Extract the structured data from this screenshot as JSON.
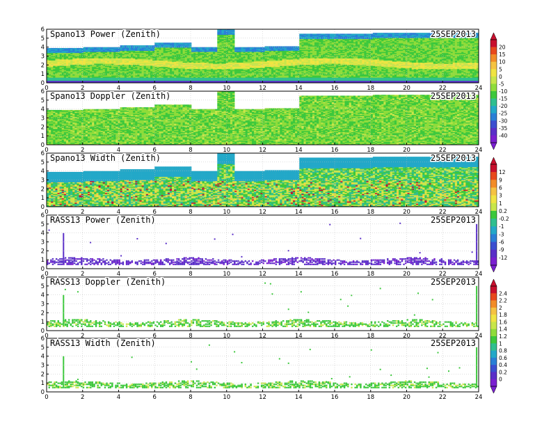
{
  "figure": {
    "date": "25SEP2013"
  },
  "chart_data": [
    {
      "type": "heatmap",
      "title": "Spano13 Power (Zenith)",
      "date": "25SEP2013",
      "x_ticks": [
        "0",
        "2",
        "4",
        "6",
        "8",
        "10",
        "12",
        "14",
        "16",
        "18",
        "20",
        "22",
        "24"
      ],
      "y_ticks": [
        "0",
        "1",
        "2",
        "3",
        "4",
        "5",
        "6"
      ],
      "xlim": [
        0,
        24
      ],
      "ylim": [
        0,
        6
      ],
      "colorbar_group": 0,
      "pattern": "profiler_power",
      "top_height_km": [
        {
          "x": 0,
          "h": 3.9
        },
        {
          "x": 2,
          "h": 4.0
        },
        {
          "x": 4,
          "h": 4.2
        },
        {
          "x": 6,
          "h": 4.5
        },
        {
          "x": 8,
          "h": 4.0
        },
        {
          "x": 9.4,
          "h": 6.0
        },
        {
          "x": 10.4,
          "h": 4.0
        },
        {
          "x": 12,
          "h": 4.1
        },
        {
          "x": 14,
          "h": 5.5
        },
        {
          "x": 18,
          "h": 5.6
        },
        {
          "x": 22,
          "h": 5.6
        },
        {
          "x": 24,
          "h": 5.6
        }
      ]
    },
    {
      "type": "heatmap",
      "title": "Spano13 Doppler (Zenith)",
      "date": "25SEP2013",
      "x_ticks": [
        "0",
        "2",
        "4",
        "6",
        "8",
        "10",
        "12",
        "14",
        "16",
        "18",
        "20",
        "22",
        "24"
      ],
      "y_ticks": [
        "0",
        "1",
        "2",
        "3",
        "4",
        "5",
        "6"
      ],
      "xlim": [
        0,
        24
      ],
      "ylim": [
        0,
        6
      ],
      "colorbar_group": 0,
      "pattern": "profiler_doppler",
      "top_height_km": [
        {
          "x": 0,
          "h": 3.9
        },
        {
          "x": 2,
          "h": 4.0
        },
        {
          "x": 4,
          "h": 4.2
        },
        {
          "x": 6,
          "h": 4.5
        },
        {
          "x": 8,
          "h": 4.0
        },
        {
          "x": 9.4,
          "h": 6.0
        },
        {
          "x": 10.4,
          "h": 4.0
        },
        {
          "x": 12,
          "h": 4.1
        },
        {
          "x": 14,
          "h": 5.5
        },
        {
          "x": 18,
          "h": 5.6
        },
        {
          "x": 22,
          "h": 5.6
        },
        {
          "x": 24,
          "h": 5.6
        }
      ]
    },
    {
      "type": "heatmap",
      "title": "Spano13 Width (Zenith)",
      "date": "25SEP2013",
      "x_ticks": [
        "0",
        "2",
        "4",
        "6",
        "8",
        "10",
        "12",
        "14",
        "16",
        "18",
        "20",
        "22",
        "24"
      ],
      "y_ticks": [
        "0",
        "1",
        "2",
        "3",
        "4",
        "5",
        "6"
      ],
      "xlim": [
        0,
        24
      ],
      "ylim": [
        0,
        6
      ],
      "colorbar_group": 1,
      "pattern": "profiler_width",
      "top_height_km": [
        {
          "x": 0,
          "h": 3.9
        },
        {
          "x": 2,
          "h": 4.0
        },
        {
          "x": 4,
          "h": 4.2
        },
        {
          "x": 6,
          "h": 4.5
        },
        {
          "x": 8,
          "h": 4.0
        },
        {
          "x": 9.4,
          "h": 6.0
        },
        {
          "x": 10.4,
          "h": 4.0
        },
        {
          "x": 12,
          "h": 4.1
        },
        {
          "x": 14,
          "h": 5.5
        },
        {
          "x": 18,
          "h": 5.6
        },
        {
          "x": 22,
          "h": 5.6
        },
        {
          "x": 24,
          "h": 5.6
        }
      ]
    },
    {
      "type": "heatmap",
      "title": "RASS13 Power (Zenith)",
      "date": "25SEP2013",
      "x_ticks": [
        "0",
        "2",
        "4",
        "6",
        "8",
        "10",
        "12",
        "14",
        "16",
        "18",
        "20",
        "22",
        "24"
      ],
      "y_ticks": [
        "0",
        "1",
        "2",
        "3",
        "4",
        "5",
        "6"
      ],
      "xlim": [
        0,
        24
      ],
      "ylim": [
        0,
        6
      ],
      "colorbar_group": 1,
      "pattern": "rass_power"
    },
    {
      "type": "heatmap",
      "title": "RASS13 Doppler (Zenith)",
      "date": "25SEP2013",
      "x_ticks": [
        "0",
        "2",
        "4",
        "6",
        "8",
        "10",
        "12",
        "14",
        "16",
        "18",
        "20",
        "22",
        "24"
      ],
      "y_ticks": [
        "0",
        "1",
        "2",
        "3",
        "4",
        "5",
        "6"
      ],
      "xlim": [
        0,
        24
      ],
      "ylim": [
        0,
        6
      ],
      "colorbar_group": 2,
      "pattern": "rass_doppler"
    },
    {
      "type": "heatmap",
      "title": "RASS13 Width (Zenith)",
      "date": "25SEP2013",
      "x_ticks": [
        "0",
        "2",
        "4",
        "6",
        "8",
        "10",
        "12",
        "14",
        "16",
        "18",
        "20",
        "22",
        "24"
      ],
      "y_ticks": [
        "0",
        "1",
        "2",
        "3",
        "4",
        "5",
        "6"
      ],
      "xlim": [
        0,
        24
      ],
      "ylim": [
        0,
        6
      ],
      "colorbar_group": 2,
      "pattern": "rass_width"
    }
  ],
  "colorbars": [
    {
      "labels": [
        "20",
        "15",
        "10",
        "5",
        "0",
        "-5",
        "-10",
        "-15",
        "-20",
        "-25",
        "-30",
        "-35",
        "-40"
      ],
      "colors": [
        "#c8102e",
        "#e8491d",
        "#f28c28",
        "#f5c342",
        "#f0e442",
        "#c8e64a",
        "#8fdc3a",
        "#3cc83c",
        "#2fbf8f",
        "#23a8c8",
        "#2a7fd6",
        "#3b4fd0",
        "#5a2fc8",
        "#7a1fd0"
      ]
    },
    {
      "labels": [
        "12",
        "9",
        "6",
        "3",
        "1",
        "0.2",
        "-0.2",
        "-1",
        "-3",
        "-6",
        "-9",
        "-12"
      ],
      "colors": [
        "#c8102e",
        "#e8491d",
        "#f28c28",
        "#f5c342",
        "#f0e442",
        "#c8e64a",
        "#3cc83c",
        "#2fbf8f",
        "#23a8c8",
        "#2a7fd6",
        "#3b4fd0",
        "#5a2fc8",
        "#7a1fd0"
      ]
    },
    {
      "labels": [
        "2.4",
        "2.2",
        "2",
        "1.8",
        "1.6",
        "1.4",
        "1.2",
        "1",
        "0.8",
        "0.6",
        "0.4",
        "0.2",
        "0"
      ],
      "colors": [
        "#c8102e",
        "#e8491d",
        "#f28c28",
        "#f5c342",
        "#f0e442",
        "#c8e64a",
        "#8fdc3a",
        "#3cc83c",
        "#2fbf8f",
        "#23a8c8",
        "#2a7fd6",
        "#3b4fd0",
        "#5a2fc8",
        "#7a1fd0"
      ]
    }
  ]
}
